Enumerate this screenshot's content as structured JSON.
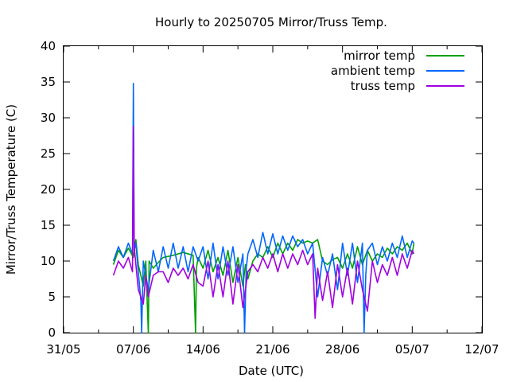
{
  "chart_data": {
    "type": "line",
    "title": "Hourly to 20250705 Mirror/Truss Temp.",
    "xlabel": "Date (UTC)",
    "ylabel": "Mirror/Truss Temperature (C)",
    "xlim": [
      "2025-05-31",
      "2025-07-12"
    ],
    "ylim": [
      0,
      40
    ],
    "x_ticks": [
      {
        "date": "2025-05-31",
        "label": "31/05"
      },
      {
        "date": "2025-06-07",
        "label": "07/06"
      },
      {
        "date": "2025-06-14",
        "label": "14/06"
      },
      {
        "date": "2025-06-21",
        "label": "21/06"
      },
      {
        "date": "2025-06-28",
        "label": "28/06"
      },
      {
        "date": "2025-07-05",
        "label": "05/07"
      },
      {
        "date": "2025-07-12",
        "label": "12/07"
      }
    ],
    "y_ticks": [
      0,
      5,
      10,
      15,
      20,
      25,
      30,
      35,
      40
    ],
    "grid": false,
    "legend_position": "top-right",
    "series": [
      {
        "name": "mirror temp",
        "color": "#00a000",
        "x": [
          "2025-06-05",
          "2025-06-05T12:00",
          "2025-06-06",
          "2025-06-06T12:00",
          "2025-06-07",
          "2025-06-07T06:00",
          "2025-06-07T12:00",
          "2025-06-08",
          "2025-06-08T06:00",
          "2025-06-08T12:00",
          "2025-06-08T14:00",
          "2025-06-09",
          "2025-06-09T12:00",
          "2025-06-10",
          "2025-06-11",
          "2025-06-12",
          "2025-06-13",
          "2025-06-13T06:00",
          "2025-06-13T08:00",
          "2025-06-13T12:00",
          "2025-06-14",
          "2025-06-14T12:00",
          "2025-06-15",
          "2025-06-15T12:00",
          "2025-06-16",
          "2025-06-16T12:00",
          "2025-06-17",
          "2025-06-17T12:00",
          "2025-06-18",
          "2025-06-18T06:00",
          "2025-06-18T12:00",
          "2025-06-19",
          "2025-06-19T12:00",
          "2025-06-20",
          "2025-06-20T12:00",
          "2025-06-21",
          "2025-06-21T12:00",
          "2025-06-22",
          "2025-06-22T12:00",
          "2025-06-23",
          "2025-06-23T12:00",
          "2025-06-24",
          "2025-06-24T12:00",
          "2025-06-25",
          "2025-06-25T12:00",
          "2025-06-26",
          "2025-06-26T12:00",
          "2025-06-27",
          "2025-06-27T12:00",
          "2025-06-28",
          "2025-06-28T12:00",
          "2025-06-29",
          "2025-06-29T12:00",
          "2025-06-30",
          "2025-06-30T12:00",
          "2025-07-01",
          "2025-07-01T12:00",
          "2025-07-02",
          "2025-07-02T12:00",
          "2025-07-03",
          "2025-07-03T12:00",
          "2025-07-04",
          "2025-07-04T12:00",
          "2025-07-05",
          "2025-07-05T04:00"
        ],
        "y": [
          9.5,
          11.5,
          10.5,
          11.8,
          10.5,
          13.0,
          9.5,
          6.5,
          10.0,
          0.0,
          10.0,
          9.0,
          9.8,
          10.5,
          10.8,
          11.2,
          10.8,
          0.0,
          9.0,
          10.5,
          9.0,
          11.5,
          8.5,
          10.5,
          8.0,
          11.5,
          7.0,
          10.5,
          6.5,
          9.5,
          7.5,
          10.0,
          11.0,
          10.5,
          12.0,
          10.5,
          12.5,
          11.0,
          12.5,
          11.5,
          13.0,
          12.5,
          12.8,
          12.5,
          13.0,
          10.0,
          9.5,
          10.2,
          10.5,
          9.0,
          11.0,
          9.0,
          12.0,
          9.5,
          11.5,
          10.0,
          11.0,
          10.5,
          11.8,
          11.0,
          12.0,
          11.5,
          12.5,
          11.0,
          12.5
        ]
      },
      {
        "name": "ambient temp",
        "color": "#0066ff",
        "x": [
          "2025-06-05",
          "2025-06-05T12:00",
          "2025-06-06",
          "2025-06-06T12:00",
          "2025-06-06T22:00",
          "2025-06-07",
          "2025-06-07T02:00",
          "2025-06-07T06:00",
          "2025-06-07T12:00",
          "2025-06-07T18:00",
          "2025-06-07T20:00",
          "2025-06-08",
          "2025-06-08T12:00",
          "2025-06-09",
          "2025-06-09T12:00",
          "2025-06-10",
          "2025-06-10T12:00",
          "2025-06-11",
          "2025-06-11T12:00",
          "2025-06-12",
          "2025-06-12T12:00",
          "2025-06-13",
          "2025-06-13T12:00",
          "2025-06-14",
          "2025-06-14T12:00",
          "2025-06-15",
          "2025-06-15T12:00",
          "2025-06-16",
          "2025-06-16T12:00",
          "2025-06-17",
          "2025-06-17T12:00",
          "2025-06-18",
          "2025-06-18T04:00",
          "2025-06-18T08:00",
          "2025-06-18T12:00",
          "2025-06-19",
          "2025-06-19T12:00",
          "2025-06-20",
          "2025-06-20T12:00",
          "2025-06-21",
          "2025-06-21T12:00",
          "2025-06-22",
          "2025-06-22T12:00",
          "2025-06-23",
          "2025-06-23T12:00",
          "2025-06-24",
          "2025-06-24T12:00",
          "2025-06-25",
          "2025-06-25T12:00",
          "2025-06-26",
          "2025-06-26T12:00",
          "2025-06-27",
          "2025-06-27T12:00",
          "2025-06-28",
          "2025-06-28T12:00",
          "2025-06-29",
          "2025-06-29T12:00",
          "2025-06-30",
          "2025-06-30T04:00",
          "2025-06-30T08:00",
          "2025-06-30T12:00",
          "2025-07-01",
          "2025-07-01T12:00",
          "2025-07-02",
          "2025-07-02T12:00",
          "2025-07-03",
          "2025-07-03T12:00",
          "2025-07-04",
          "2025-07-04T12:00",
          "2025-07-05",
          "2025-07-05T04:00"
        ],
        "y": [
          10.0,
          12.0,
          10.5,
          12.5,
          11.0,
          34.8,
          11.5,
          12.5,
          8.5,
          4.5,
          0.0,
          10.0,
          6.0,
          11.5,
          8.5,
          12.0,
          9.0,
          12.5,
          9.0,
          12.0,
          8.5,
          12.0,
          10.0,
          12.0,
          7.5,
          12.5,
          7.5,
          12.0,
          8.0,
          12.0,
          7.0,
          11.0,
          0.0,
          9.0,
          11.0,
          13.0,
          10.5,
          14.0,
          11.0,
          13.8,
          11.0,
          13.5,
          11.5,
          13.5,
          12.0,
          13.0,
          11.0,
          12.5,
          5.0,
          10.5,
          8.0,
          11.0,
          6.0,
          12.5,
          8.0,
          12.5,
          7.0,
          12.5,
          0.0,
          8.0,
          11.5,
          12.5,
          9.5,
          12.0,
          10.0,
          12.5,
          10.5,
          13.5,
          10.5,
          12.8,
          12.5
        ]
      },
      {
        "name": "truss temp",
        "color": "#a000e0",
        "x": [
          "2025-06-05",
          "2025-06-05T12:00",
          "2025-06-06",
          "2025-06-06T12:00",
          "2025-06-06T22:00",
          "2025-06-07",
          "2025-06-07T02:00",
          "2025-06-07T12:00",
          "2025-06-08",
          "2025-06-08T06:00",
          "2025-06-08T12:00",
          "2025-06-09",
          "2025-06-09T12:00",
          "2025-06-10",
          "2025-06-10T12:00",
          "2025-06-11",
          "2025-06-11T12:00",
          "2025-06-12",
          "2025-06-12T12:00",
          "2025-06-13",
          "2025-06-13T12:00",
          "2025-06-14",
          "2025-06-14T12:00",
          "2025-06-15",
          "2025-06-15T12:00",
          "2025-06-16",
          "2025-06-16T12:00",
          "2025-06-17",
          "2025-06-17T12:00",
          "2025-06-18",
          "2025-06-18T12:00",
          "2025-06-19",
          "2025-06-19T12:00",
          "2025-06-20",
          "2025-06-20T12:00",
          "2025-06-21",
          "2025-06-21T12:00",
          "2025-06-22",
          "2025-06-22T12:00",
          "2025-06-23",
          "2025-06-23T12:00",
          "2025-06-24",
          "2025-06-24T12:00",
          "2025-06-25",
          "2025-06-25T06:00",
          "2025-06-25T12:00",
          "2025-06-26",
          "2025-06-26T12:00",
          "2025-06-27",
          "2025-06-27T12:00",
          "2025-06-28",
          "2025-06-28T12:00",
          "2025-06-29",
          "2025-06-29T12:00",
          "2025-06-30",
          "2025-06-30T12:00",
          "2025-07-01",
          "2025-07-01T12:00",
          "2025-07-02",
          "2025-07-02T12:00",
          "2025-07-03",
          "2025-07-03T12:00",
          "2025-07-04",
          "2025-07-04T12:00",
          "2025-07-05",
          "2025-07-05T04:00"
        ],
        "y": [
          8.0,
          10.0,
          9.0,
          10.5,
          8.5,
          28.8,
          12.0,
          6.0,
          4.0,
          8.0,
          5.0,
          8.0,
          8.5,
          8.5,
          7.0,
          9.0,
          8.0,
          9.0,
          7.5,
          9.5,
          7.0,
          6.5,
          10.0,
          5.0,
          9.5,
          5.0,
          10.0,
          4.0,
          9.5,
          3.5,
          8.5,
          9.5,
          8.5,
          10.5,
          9.0,
          11.0,
          8.5,
          11.0,
          9.0,
          11.0,
          9.5,
          11.5,
          9.5,
          11.0,
          2.0,
          9.0,
          4.5,
          8.5,
          3.5,
          9.5,
          5.0,
          9.0,
          4.0,
          10.0,
          6.0,
          3.0,
          10.0,
          7.0,
          9.5,
          8.0,
          10.5,
          8.0,
          11.0,
          9.0,
          11.5,
          11.0
        ]
      }
    ]
  }
}
